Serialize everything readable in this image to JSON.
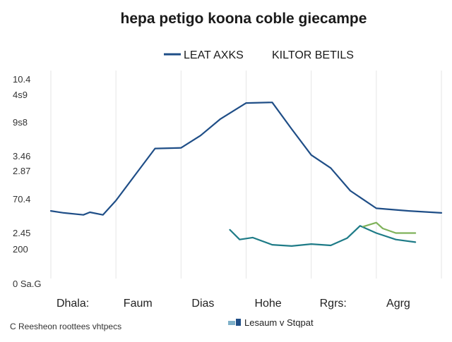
{
  "chart_data": {
    "type": "line",
    "title": "hepa petigo koona  coble giecampe",
    "subtitle": "",
    "xlabel": "",
    "ylabel": "",
    "categories": [
      "Dhala:",
      "Faum",
      "Dias",
      "Hohe",
      "Rgrs:",
      "Agrg"
    ],
    "y_tick_labels": [
      "10.4",
      "4s9",
      "9s8",
      "3.46",
      "2.87",
      "70.4",
      "2.45",
      "200",
      "0 Sa.G"
    ],
    "x": [
      0,
      0.5,
      1,
      1.5,
      2,
      2.5,
      3,
      3.5,
      4,
      4.5,
      5,
      5.5
    ],
    "series": [
      {
        "name": "LEAT AXKS",
        "color": "#1f4e87",
        "x": [
          0,
          0.2,
          0.5,
          0.6,
          0.8,
          1.0,
          1.3,
          1.6,
          2.0,
          2.3,
          2.6,
          3.0,
          3.4,
          3.7,
          4.0,
          4.3,
          4.6,
          5.0,
          5.5,
          6.0
        ],
        "values": [
          70.4,
          70.1,
          69.8,
          70.2,
          69.8,
          72.0,
          76.0,
          80.0,
          80.1,
          82.0,
          84.5,
          87.0,
          87.1,
          83.0,
          79.0,
          77.0,
          73.5,
          70.8,
          70.4,
          70.1
        ]
      },
      {
        "name": "",
        "color": "#1e7b87",
        "x": [
          2.75,
          2.9,
          3.1,
          3.4,
          3.7,
          4.0,
          4.3,
          4.55,
          4.75,
          5.0,
          5.3,
          5.6
        ],
        "values": [
          67.5,
          66.0,
          66.3,
          65.2,
          65.0,
          65.3,
          65.1,
          66.2,
          68.1,
          67.0,
          66.0,
          65.6
        ]
      },
      {
        "name": "",
        "color": "#7fb25a",
        "x": [
          4.8,
          5.0,
          5.1,
          5.3,
          5.6
        ],
        "values": [
          68.0,
          68.6,
          67.7,
          67.0,
          67.0
        ]
      }
    ],
    "legend_top": {
      "entries": [
        {
          "label": "LEAT AXKS",
          "color": "#1f4e87"
        },
        {
          "label": "KILTOR BETILS",
          "color": ""
        }
      ],
      "placement": "top"
    },
    "legend_bottom": {
      "entries": [
        {
          "label": "Lesaum v Stqpat",
          "color": "#1f4e87"
        }
      ],
      "placement": "bottom-center"
    },
    "footnote": "C Reesheon roottees vhtpecs",
    "grid": "vertical",
    "ylim": [
      60,
      92
    ]
  }
}
